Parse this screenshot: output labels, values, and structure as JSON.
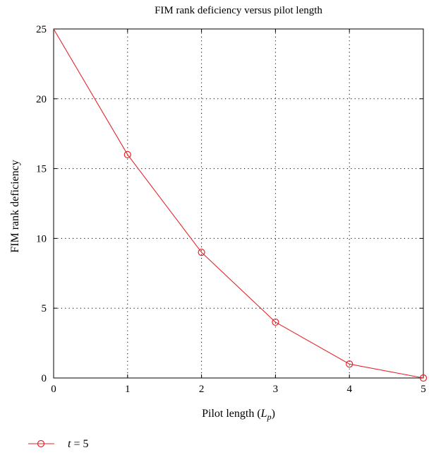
{
  "chart_data": {
    "type": "line",
    "title": "FIM rank deficiency versus pilot length",
    "xlabel": {
      "prefix": "Pilot length (",
      "var": "L",
      "sub": "p",
      "suffix": ")"
    },
    "ylabel": "FIM rank deficiency",
    "xlim": [
      0,
      5
    ],
    "ylim": [
      0,
      25
    ],
    "xticks": [
      0,
      1,
      2,
      3,
      4,
      5
    ],
    "yticks": [
      0,
      5,
      10,
      15,
      20,
      25
    ],
    "grid": true,
    "legend_position": "bottom-left",
    "series": [
      {
        "name_var": "t",
        "name_rest": " = 5",
        "color": "#e3262b",
        "marker": "circle",
        "x": [
          0,
          1,
          2,
          3,
          4,
          5
        ],
        "y": [
          25,
          16,
          9,
          4,
          1,
          0
        ],
        "marker_x": [
          1,
          2,
          3,
          4,
          5
        ]
      }
    ]
  }
}
